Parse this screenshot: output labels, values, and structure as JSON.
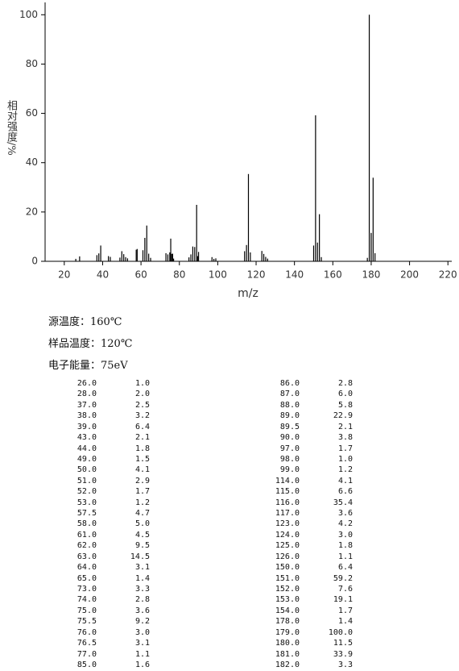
{
  "chart_data": {
    "type": "stick",
    "y_label": "相对强度/%",
    "x_label": "m/z",
    "color": "#000000",
    "x": [
      26,
      28,
      37,
      38,
      39,
      43,
      44,
      49,
      50,
      51,
      52,
      53,
      57.5,
      58,
      61,
      62,
      63,
      64,
      65,
      73,
      74,
      75,
      75.5,
      76,
      76.5,
      77,
      85,
      86,
      87,
      88,
      89,
      89.5,
      90,
      97,
      98,
      99,
      114,
      115,
      116,
      117,
      123,
      124,
      125,
      126,
      150,
      151,
      152,
      153,
      154,
      178,
      179,
      180,
      181,
      182
    ],
    "values": [
      1.0,
      2.0,
      2.5,
      3.2,
      6.4,
      2.1,
      1.8,
      1.5,
      4.1,
      2.9,
      1.7,
      1.2,
      4.7,
      5.0,
      4.5,
      9.5,
      14.5,
      3.1,
      1.4,
      3.3,
      2.8,
      3.6,
      9.2,
      3.0,
      3.1,
      1.1,
      1.6,
      2.8,
      6.0,
      5.8,
      22.9,
      2.1,
      3.8,
      1.7,
      1.0,
      1.2,
      4.1,
      6.6,
      35.4,
      3.6,
      4.2,
      3.0,
      1.8,
      1.1,
      6.4,
      59.2,
      7.6,
      19.1,
      1.7,
      1.4,
      100.0,
      11.5,
      33.9,
      3.3
    ],
    "xlim": [
      10,
      222
    ],
    "xticks": [
      20,
      40,
      60,
      80,
      100,
      120,
      140,
      160,
      180,
      200,
      220
    ],
    "ylim": [
      0,
      105
    ],
    "yticks": [
      0,
      20,
      40,
      60,
      80,
      100
    ]
  },
  "info": [
    "源温度：160℃",
    "样品温度：120℃",
    "电子能量：75eV"
  ],
  "table": {
    "rows": [
      [
        "26.0",
        "1.0",
        "86.0",
        "2.8"
      ],
      [
        "28.0",
        "2.0",
        "87.0",
        "6.0"
      ],
      [
        "37.0",
        "2.5",
        "88.0",
        "5.8"
      ],
      [
        "38.0",
        "3.2",
        "89.0",
        "22.9"
      ],
      [
        "39.0",
        "6.4",
        "89.5",
        "2.1"
      ],
      [
        "43.0",
        "2.1",
        "90.0",
        "3.8"
      ],
      [
        "44.0",
        "1.8",
        "97.0",
        "1.7"
      ],
      [
        "49.0",
        "1.5",
        "98.0",
        "1.0"
      ],
      [
        "50.0",
        "4.1",
        "99.0",
        "1.2"
      ],
      [
        "51.0",
        "2.9",
        "114.0",
        "4.1"
      ],
      [
        "52.0",
        "1.7",
        "115.0",
        "6.6"
      ],
      [
        "53.0",
        "1.2",
        "116.0",
        "35.4"
      ],
      [
        "57.5",
        "4.7",
        "117.0",
        "3.6"
      ],
      [
        "58.0",
        "5.0",
        "123.0",
        "4.2"
      ],
      [
        "61.0",
        "4.5",
        "124.0",
        "3.0"
      ],
      [
        "62.0",
        "9.5",
        "125.0",
        "1.8"
      ],
      [
        "63.0",
        "14.5",
        "126.0",
        "1.1"
      ],
      [
        "64.0",
        "3.1",
        "150.0",
        "6.4"
      ],
      [
        "65.0",
        "1.4",
        "151.0",
        "59.2"
      ],
      [
        "73.0",
        "3.3",
        "152.0",
        "7.6"
      ],
      [
        "74.0",
        "2.8",
        "153.0",
        "19.1"
      ],
      [
        "75.0",
        "3.6",
        "154.0",
        "1.7"
      ],
      [
        "75.5",
        "9.2",
        "178.0",
        "1.4"
      ],
      [
        "76.0",
        "3.0",
        "179.0",
        "100.0"
      ],
      [
        "76.5",
        "3.1",
        "180.0",
        "11.5"
      ],
      [
        "77.0",
        "1.1",
        "181.0",
        "33.9"
      ],
      [
        "85.0",
        "1.6",
        "182.0",
        "3.3"
      ]
    ]
  }
}
